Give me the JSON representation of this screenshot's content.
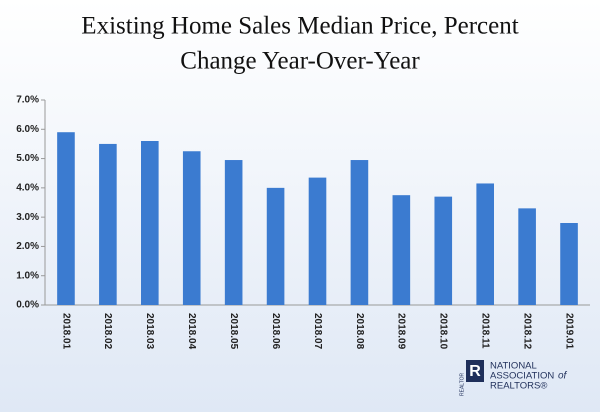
{
  "chart_data": {
    "type": "bar",
    "title_lines": [
      "Existing Home Sales Median Price, Percent",
      "Change Year-Over-Year"
    ],
    "categories": [
      "2018.01",
      "2018.02",
      "2018.03",
      "2018.04",
      "2018.05",
      "2018.06",
      "2018.07",
      "2018.08",
      "2018.09",
      "2018.10",
      "2018.11",
      "2018.12",
      "2019.01"
    ],
    "values": [
      5.9,
      5.5,
      5.6,
      5.25,
      4.95,
      4.0,
      4.35,
      4.95,
      3.75,
      3.7,
      4.15,
      3.3,
      2.8
    ],
    "color": "#3b7bd0",
    "ylim": [
      0,
      7
    ],
    "yticks": [
      {
        "value": 0,
        "label": "0.0%"
      },
      {
        "value": 1,
        "label": "1.0%"
      },
      {
        "value": 2,
        "label": "2.0%"
      },
      {
        "value": 3,
        "label": "3.0%"
      },
      {
        "value": 4,
        "label": "4.0%"
      },
      {
        "value": 5,
        "label": "5.0%"
      },
      {
        "value": 6,
        "label": "6.0%"
      },
      {
        "value": 7,
        "label": "7.0%"
      }
    ],
    "grid": false
  },
  "logo": {
    "lines": [
      "NATIONAL",
      "ASSOCIATION",
      "of",
      "REALTORS®"
    ],
    "mark": "R",
    "caption": "REALTOR"
  }
}
